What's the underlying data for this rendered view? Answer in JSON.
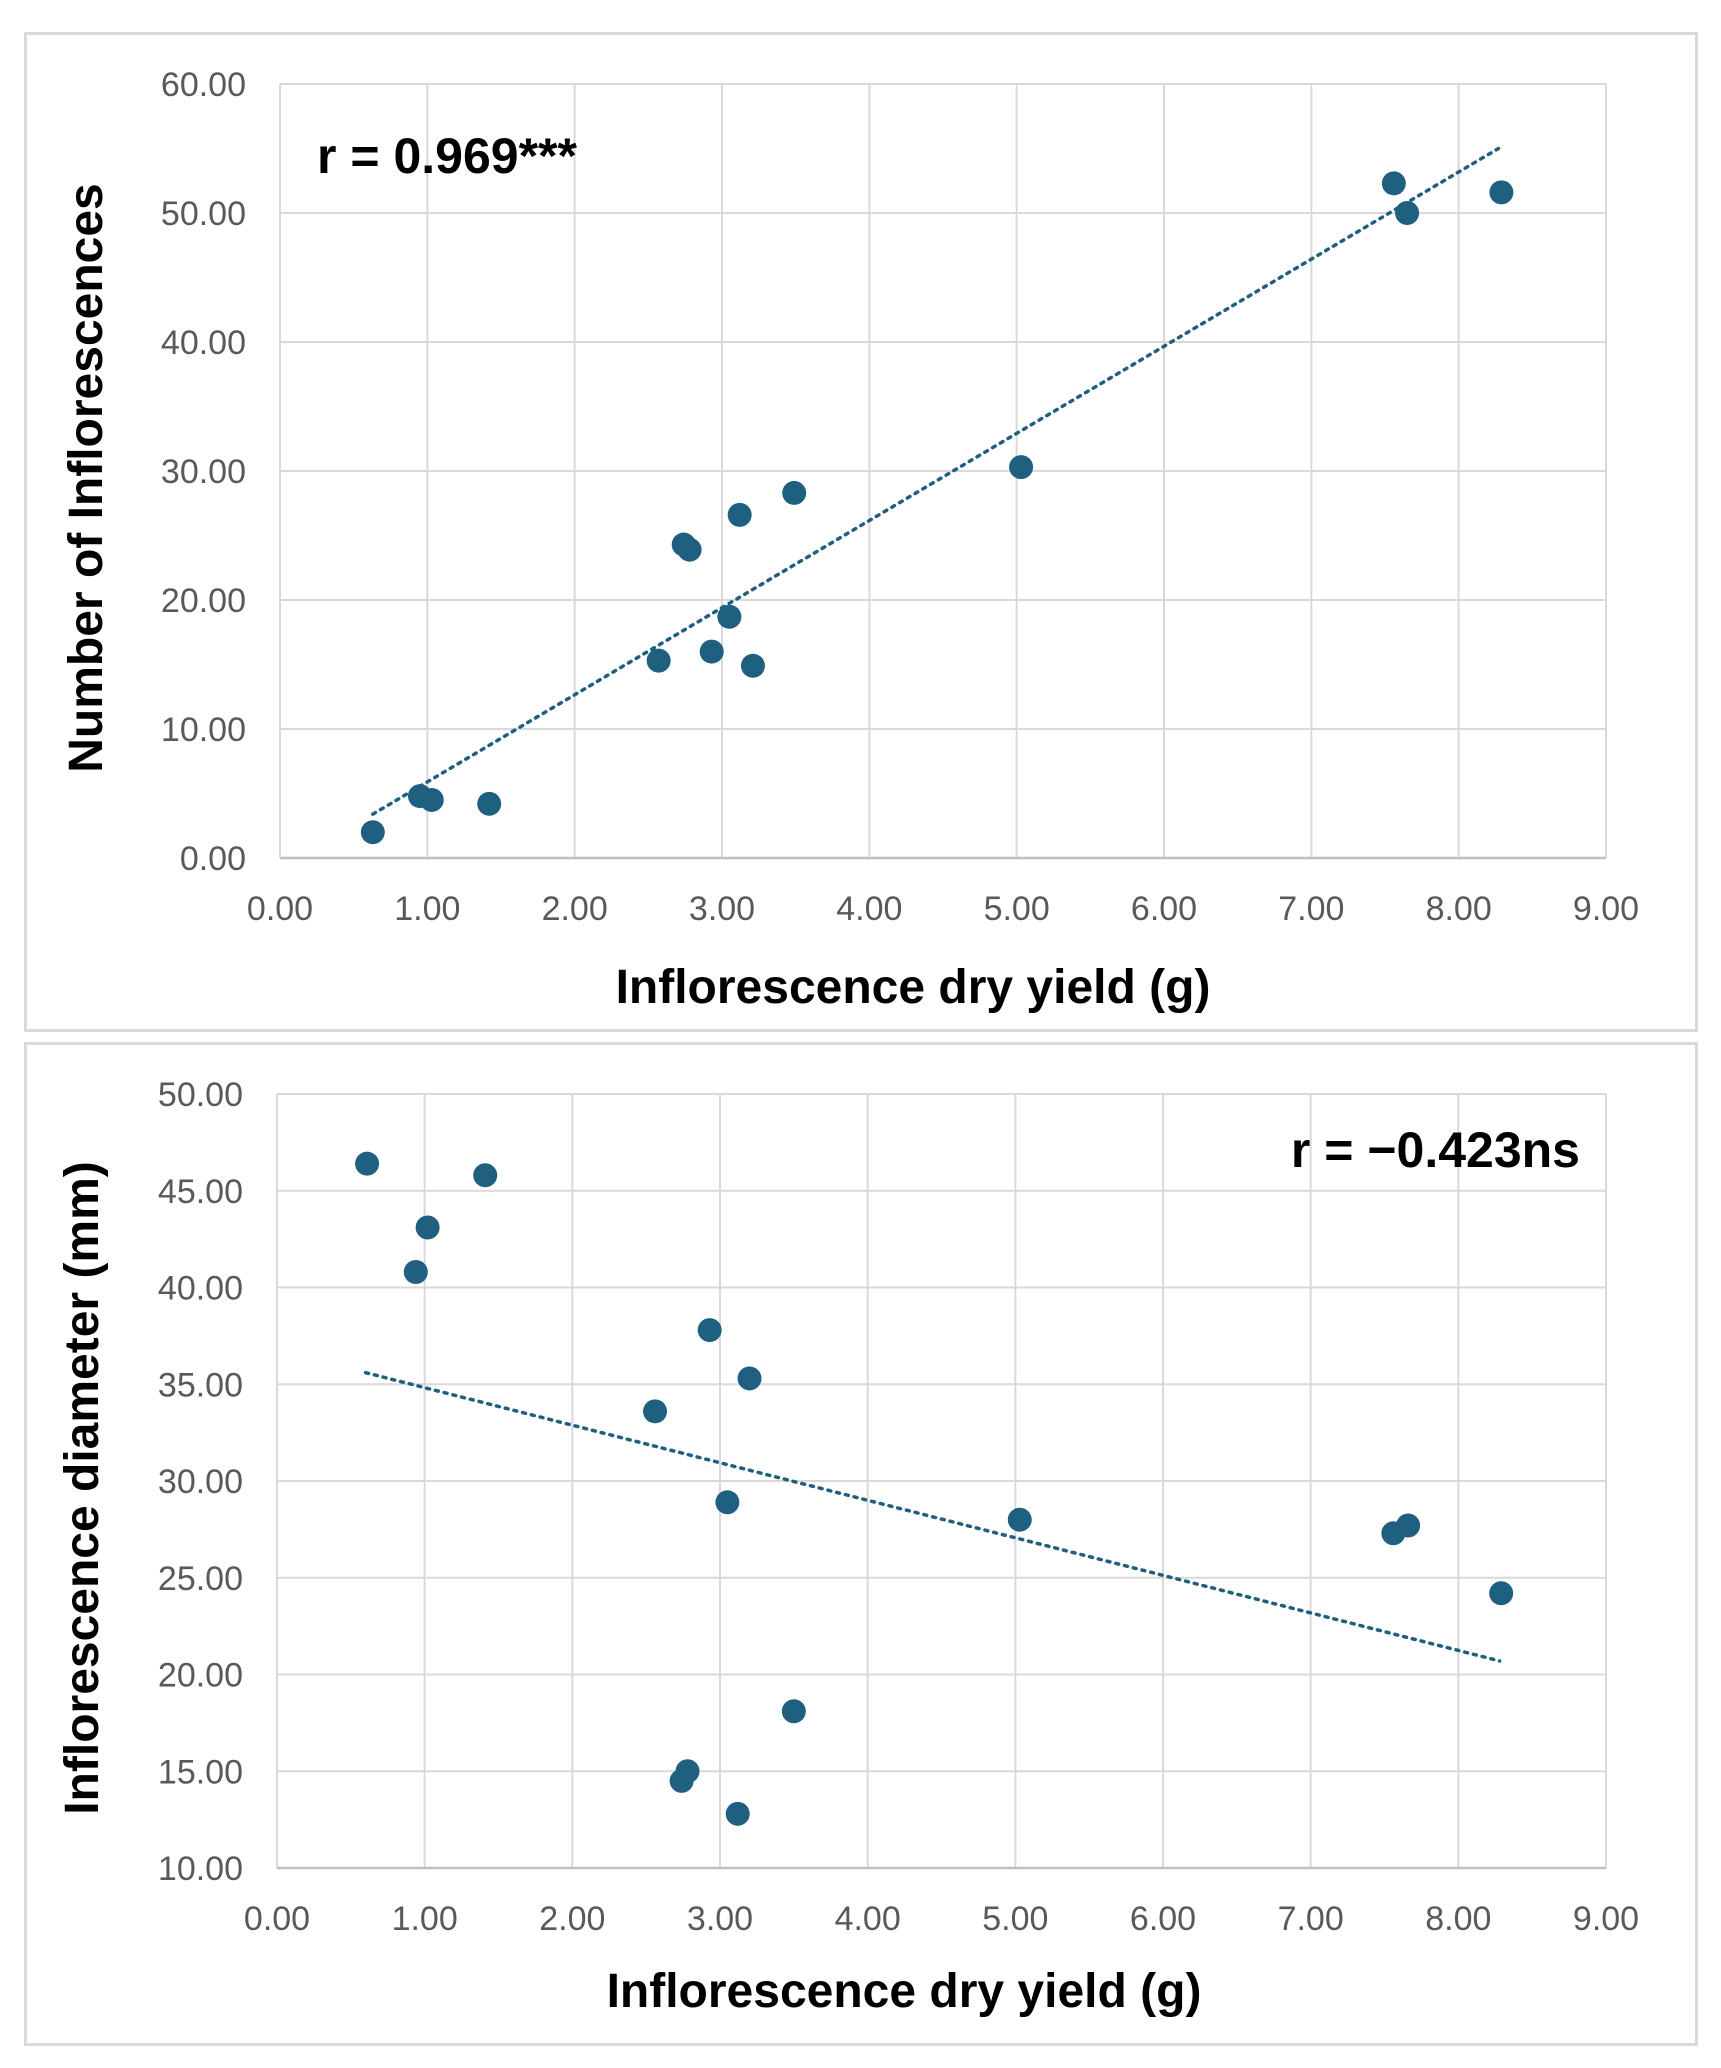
{
  "chart_data": [
    {
      "type": "scatter",
      "xlabel": "Inflorescence dry yield (g)",
      "ylabel": "Number of Inflorescences",
      "annotation": "r = 0.969***",
      "xlim": [
        0,
        9
      ],
      "ylim": [
        0,
        60
      ],
      "xticks": [
        "0.00",
        "1.00",
        "2.00",
        "3.00",
        "4.00",
        "5.00",
        "6.00",
        "7.00",
        "8.00",
        "9.00"
      ],
      "yticks": [
        "0.00",
        "10.00",
        "20.00",
        "30.00",
        "40.00",
        "50.00",
        "60.00"
      ],
      "grid": true,
      "trendline": {
        "style": "dotted",
        "x": [
          0.63,
          8.27
        ],
        "y": [
          3.4,
          55.0
        ]
      },
      "marker_color": "#1f5f7f",
      "x": [
        0.63,
        0.95,
        1.03,
        1.42,
        2.57,
        2.74,
        2.78,
        2.93,
        3.05,
        3.12,
        3.21,
        3.49,
        5.03,
        7.56,
        7.65,
        8.29
      ],
      "y": [
        2.0,
        4.8,
        4.5,
        4.2,
        15.3,
        24.3,
        23.9,
        16.0,
        18.7,
        26.6,
        14.9,
        28.3,
        30.3,
        52.3,
        50.0,
        51.6
      ]
    },
    {
      "type": "scatter",
      "xlabel": "Inflorescence dry yield (g)",
      "ylabel": "Inflorescence diameter (mm)",
      "annotation": "r = −0.423ns",
      "xlim": [
        0,
        9
      ],
      "ylim": [
        10,
        50
      ],
      "xticks": [
        "0.00",
        "1.00",
        "2.00",
        "3.00",
        "4.00",
        "5.00",
        "6.00",
        "7.00",
        "8.00",
        "9.00"
      ],
      "yticks": [
        "10.00",
        "15.00",
        "20.00",
        "25.00",
        "30.00",
        "35.00",
        "40.00",
        "45.00",
        "50.00"
      ],
      "grid": true,
      "trendline": {
        "style": "dotted",
        "x": [
          0.6,
          8.28
        ],
        "y": [
          35.6,
          20.7
        ]
      },
      "marker_color": "#1f5f7f",
      "x": [
        0.61,
        0.94,
        1.02,
        1.41,
        2.56,
        2.74,
        2.78,
        2.93,
        3.05,
        3.12,
        3.2,
        3.5,
        5.03,
        7.56,
        7.66,
        8.29
      ],
      "y": [
        46.4,
        40.8,
        43.1,
        45.8,
        33.6,
        14.5,
        15.0,
        37.8,
        28.9,
        12.8,
        35.3,
        18.1,
        28.0,
        27.3,
        27.7,
        24.2
      ]
    }
  ]
}
